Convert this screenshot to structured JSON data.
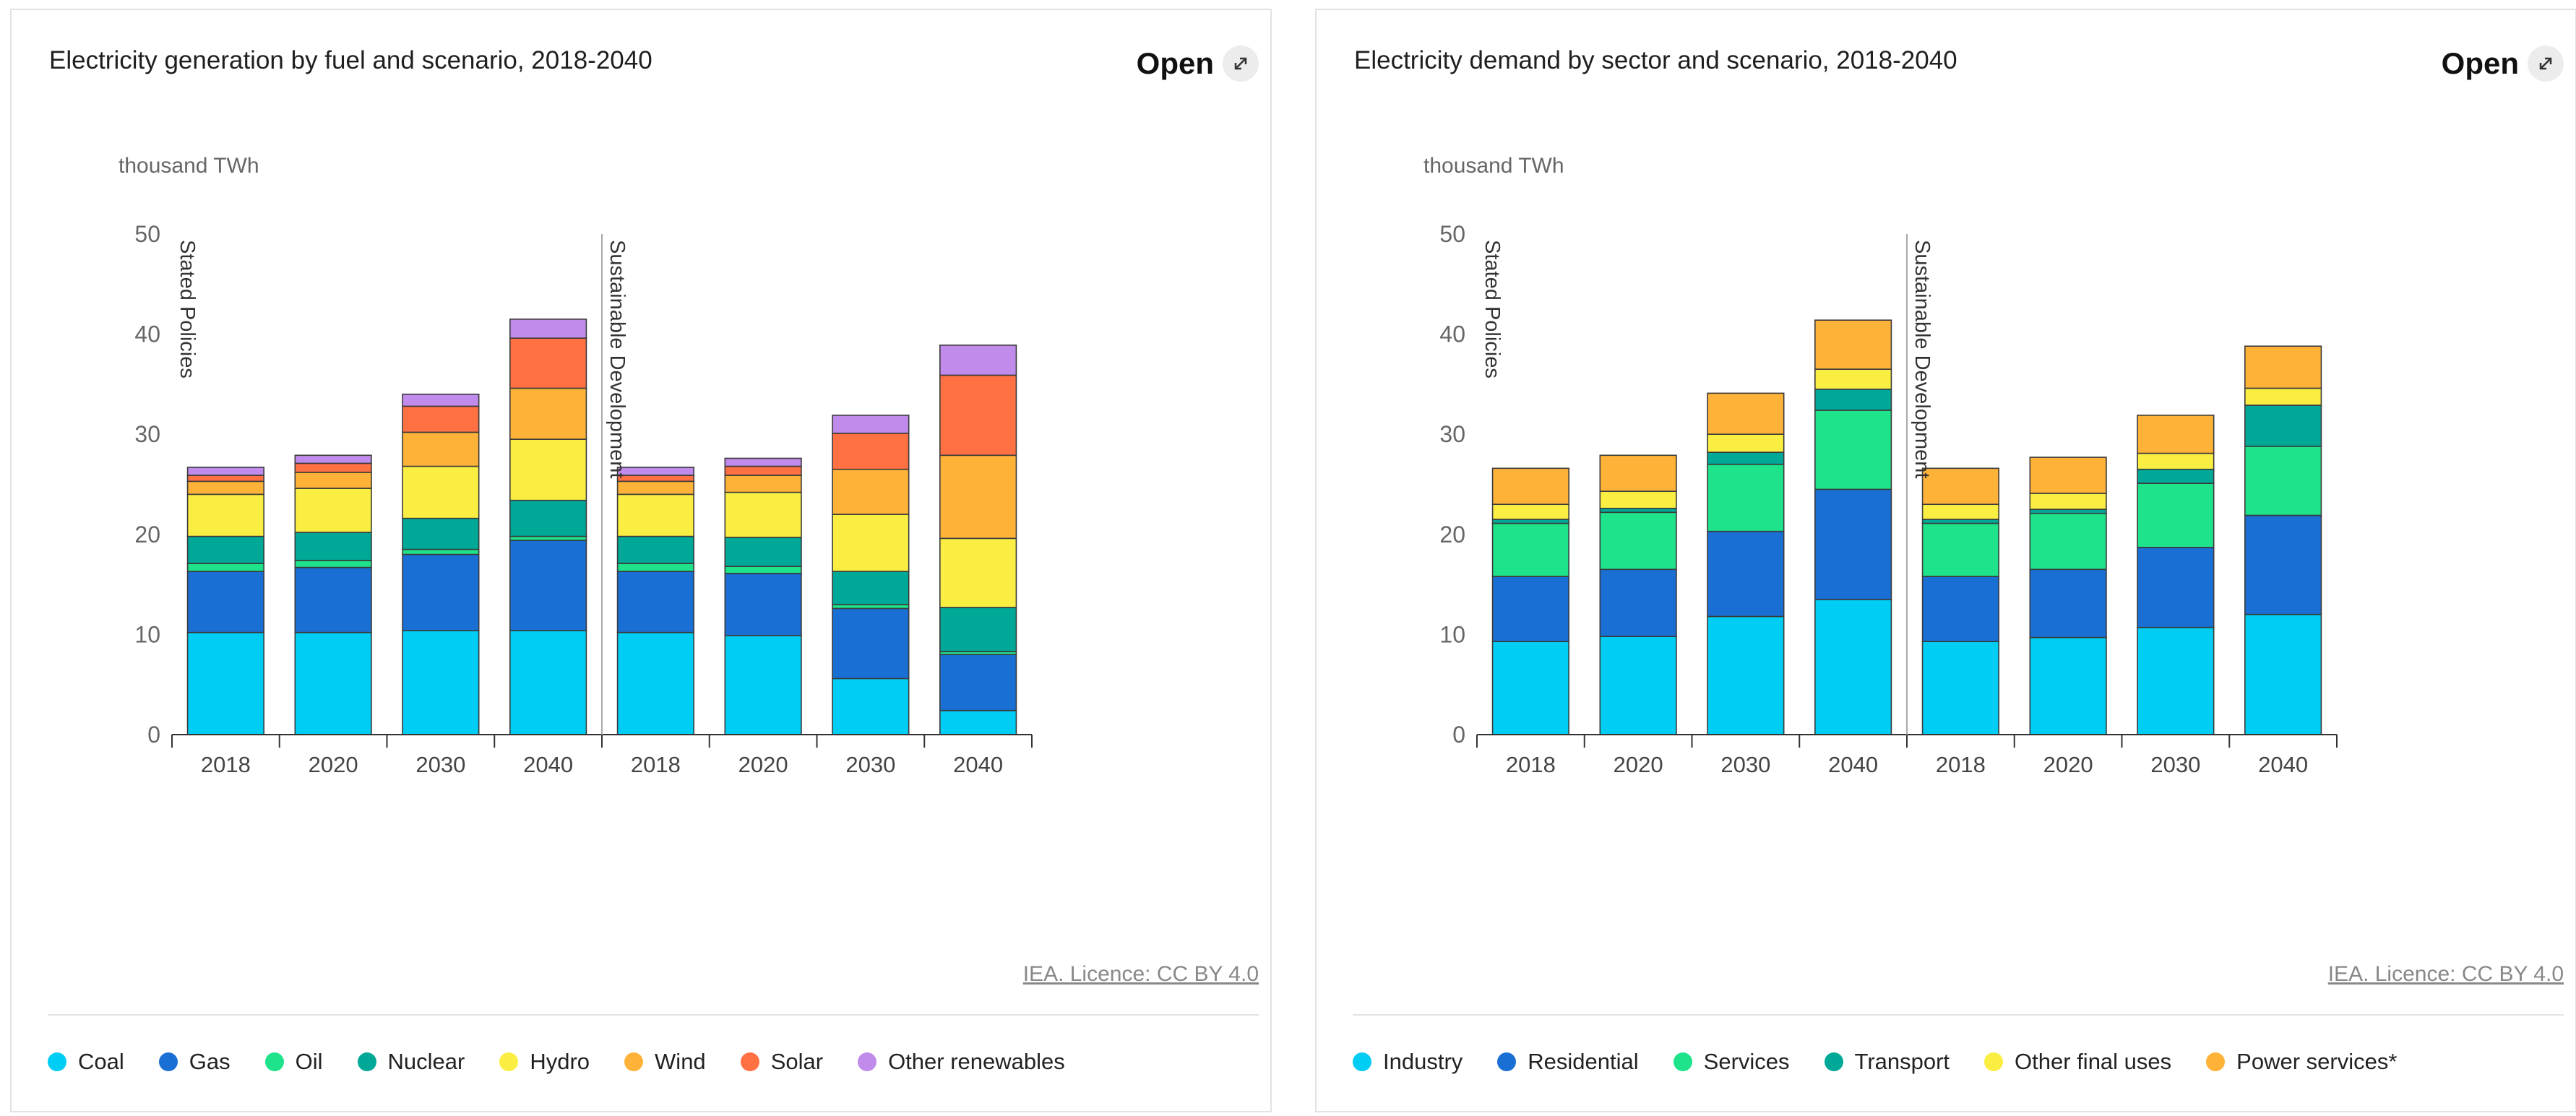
{
  "panels": [
    {
      "title": "Electricity generation by fuel and scenario, 2018-2040",
      "open_label": "Open",
      "licence": "IEA. Licence: CC BY 4.0",
      "unit_label": "thousand TWh",
      "y_ticks": [
        "0",
        "10",
        "20",
        "30",
        "40",
        "50"
      ],
      "legend": [
        {
          "label": "Coal",
          "color": "#00cdf4"
        },
        {
          "label": "Gas",
          "color": "#1a6fd4"
        },
        {
          "label": "Oil",
          "color": "#1ee38a"
        },
        {
          "label": "Nuclear",
          "color": "#00a898"
        },
        {
          "label": "Hydro",
          "color": "#fbee43"
        },
        {
          "label": "Wind",
          "color": "#ffb238"
        },
        {
          "label": "Solar",
          "color": "#ff7043"
        },
        {
          "label": "Other renewables",
          "color": "#c08bea"
        }
      ]
    },
    {
      "title": "Electricity demand by sector and scenario, 2018-2040",
      "open_label": "Open",
      "licence": "IEA. Licence: CC BY 4.0",
      "unit_label": "thousand TWh",
      "y_ticks": [
        "0",
        "10",
        "20",
        "30",
        "40",
        "50"
      ],
      "legend": [
        {
          "label": "Industry",
          "color": "#00cdf4"
        },
        {
          "label": "Residential",
          "color": "#1a6fd4"
        },
        {
          "label": "Services",
          "color": "#1ee38a"
        },
        {
          "label": "Transport",
          "color": "#00a898"
        },
        {
          "label": "Other final uses",
          "color": "#fbee43"
        },
        {
          "label": "Power services*",
          "color": "#ffb238"
        }
      ]
    }
  ],
  "chart_data": [
    {
      "type": "bar",
      "stacked": true,
      "title": "Electricity generation by fuel and scenario, 2018-2040",
      "ylabel": "thousand TWh",
      "ylim": [
        0,
        50
      ],
      "scenarios": [
        {
          "name": "Stated Policies",
          "categories": [
            "2018",
            "2020",
            "2030",
            "2040"
          ]
        },
        {
          "name": "Sustainable Development",
          "categories": [
            "2018",
            "2020",
            "2030",
            "2040"
          ]
        }
      ],
      "series": [
        {
          "name": "Coal",
          "color": "#00cdf4",
          "values": [
            10.2,
            10.2,
            10.4,
            10.4,
            10.2,
            9.9,
            5.6,
            2.4
          ]
        },
        {
          "name": "Gas",
          "color": "#1a6fd4",
          "values": [
            6.1,
            6.5,
            7.6,
            9.0,
            6.1,
            6.2,
            7.0,
            5.6
          ]
        },
        {
          "name": "Oil",
          "color": "#1ee38a",
          "values": [
            0.8,
            0.7,
            0.5,
            0.4,
            0.8,
            0.7,
            0.4,
            0.3
          ]
        },
        {
          "name": "Nuclear",
          "color": "#00a898",
          "values": [
            2.7,
            2.8,
            3.1,
            3.6,
            2.7,
            2.9,
            3.3,
            4.4
          ]
        },
        {
          "name": "Hydro",
          "color": "#fbee43",
          "values": [
            4.2,
            4.4,
            5.2,
            6.1,
            4.2,
            4.5,
            5.7,
            6.9
          ]
        },
        {
          "name": "Wind",
          "color": "#ffb238",
          "values": [
            1.3,
            1.6,
            3.4,
            5.1,
            1.3,
            1.7,
            4.5,
            8.3
          ]
        },
        {
          "name": "Solar",
          "color": "#ff7043",
          "values": [
            0.6,
            0.9,
            2.6,
            5.0,
            0.6,
            0.9,
            3.6,
            8.0
          ]
        },
        {
          "name": "Other renewables",
          "color": "#c08bea",
          "values": [
            0.8,
            0.8,
            1.2,
            1.9,
            0.8,
            0.8,
            1.8,
            3.0
          ]
        }
      ]
    },
    {
      "type": "bar",
      "stacked": true,
      "title": "Electricity demand by sector and scenario, 2018-2040",
      "ylabel": "thousand TWh",
      "ylim": [
        0,
        50
      ],
      "scenarios": [
        {
          "name": "Stated Policies",
          "categories": [
            "2018",
            "2020",
            "2030",
            "2040"
          ]
        },
        {
          "name": "Sustainable Development",
          "categories": [
            "2018",
            "2020",
            "2030",
            "2040"
          ]
        }
      ],
      "series": [
        {
          "name": "Industry",
          "color": "#00cdf4",
          "values": [
            9.3,
            9.8,
            11.8,
            13.5,
            9.3,
            9.7,
            10.7,
            12.0
          ]
        },
        {
          "name": "Residential",
          "color": "#1a6fd4",
          "values": [
            6.5,
            6.7,
            8.5,
            11.0,
            6.5,
            6.8,
            8.0,
            9.9
          ]
        },
        {
          "name": "Services",
          "color": "#1ee38a",
          "values": [
            5.3,
            5.7,
            6.7,
            7.9,
            5.3,
            5.6,
            6.4,
            6.9
          ]
        },
        {
          "name": "Transport",
          "color": "#00a898",
          "values": [
            0.4,
            0.4,
            1.2,
            2.1,
            0.4,
            0.4,
            1.4,
            4.1
          ]
        },
        {
          "name": "Other final uses",
          "color": "#fbee43",
          "values": [
            1.5,
            1.7,
            1.8,
            2.0,
            1.5,
            1.6,
            1.6,
            1.7
          ]
        },
        {
          "name": "Power services*",
          "color": "#ffb238",
          "values": [
            3.6,
            3.6,
            4.1,
            4.9,
            3.6,
            3.6,
            3.8,
            4.2
          ]
        }
      ]
    }
  ]
}
